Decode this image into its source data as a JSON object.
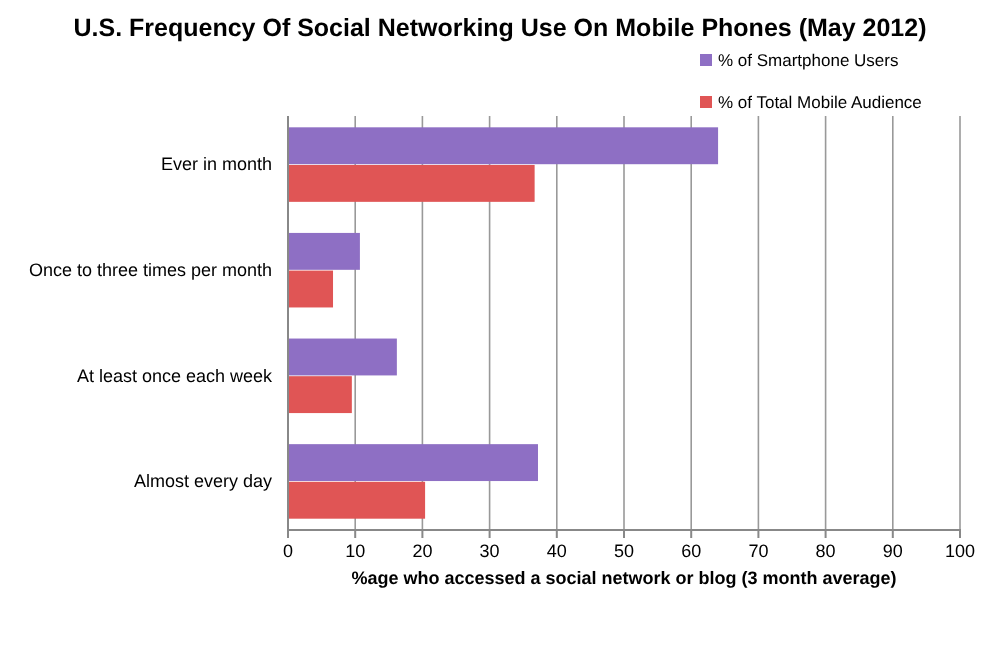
{
  "chart_data": {
    "type": "bar",
    "orientation": "horizontal",
    "title": "U.S. Frequency Of Social Networking Use On Mobile Phones (May 2012)",
    "xlabel": "%age who accessed a social network or blog (3 month average)",
    "categories": [
      "Ever in month",
      "Once to three times per month",
      "At least once each week",
      "Almost every day"
    ],
    "series": [
      {
        "name": "% of Smartphone Users",
        "color": "#8e6fc4",
        "values": [
          64,
          10.7,
          16.2,
          37.2
        ]
      },
      {
        "name": "% of Total Mobile Audience",
        "color": "#e05555",
        "values": [
          36.7,
          6.7,
          9.5,
          20.4
        ]
      }
    ],
    "xlim": [
      0,
      100
    ],
    "xticks": [
      0,
      10,
      20,
      30,
      40,
      50,
      60,
      70,
      80,
      90,
      100
    ],
    "grid": "x",
    "legend": "top right"
  }
}
